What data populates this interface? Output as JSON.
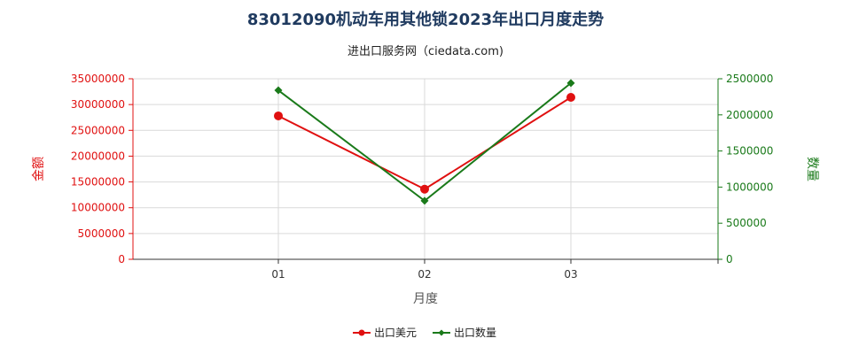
{
  "chart_data": {
    "type": "line",
    "title": "83012090机动车用其他锁2023年出口月度走势",
    "subtitle": "进出口服务网（ciedata.com)",
    "xlabel": "月度",
    "ylabel_left": "金额",
    "ylabel_right": "数量",
    "categories": [
      "01",
      "02",
      "03"
    ],
    "ylim_left": [
      0,
      35000000
    ],
    "ylim_right": [
      0,
      2500000
    ],
    "yticks_left": [
      "0",
      "5000000",
      "10000000",
      "15000000",
      "20000000",
      "25000000",
      "30000000",
      "35000000"
    ],
    "yticks_right": [
      "0",
      "500000",
      "1000000",
      "1500000",
      "2000000",
      "2500000"
    ],
    "grid": true,
    "legend_position": "bottom-center",
    "series": [
      {
        "name": "出口美元",
        "axis": "left",
        "color": "#e01010",
        "marker": "circle",
        "values": [
          27800000,
          13600000,
          31400000
        ]
      },
      {
        "name": "出口数量",
        "axis": "right",
        "color": "#1a7a1a",
        "marker": "diamond",
        "values": [
          2340000,
          810000,
          2440000
        ]
      }
    ]
  }
}
